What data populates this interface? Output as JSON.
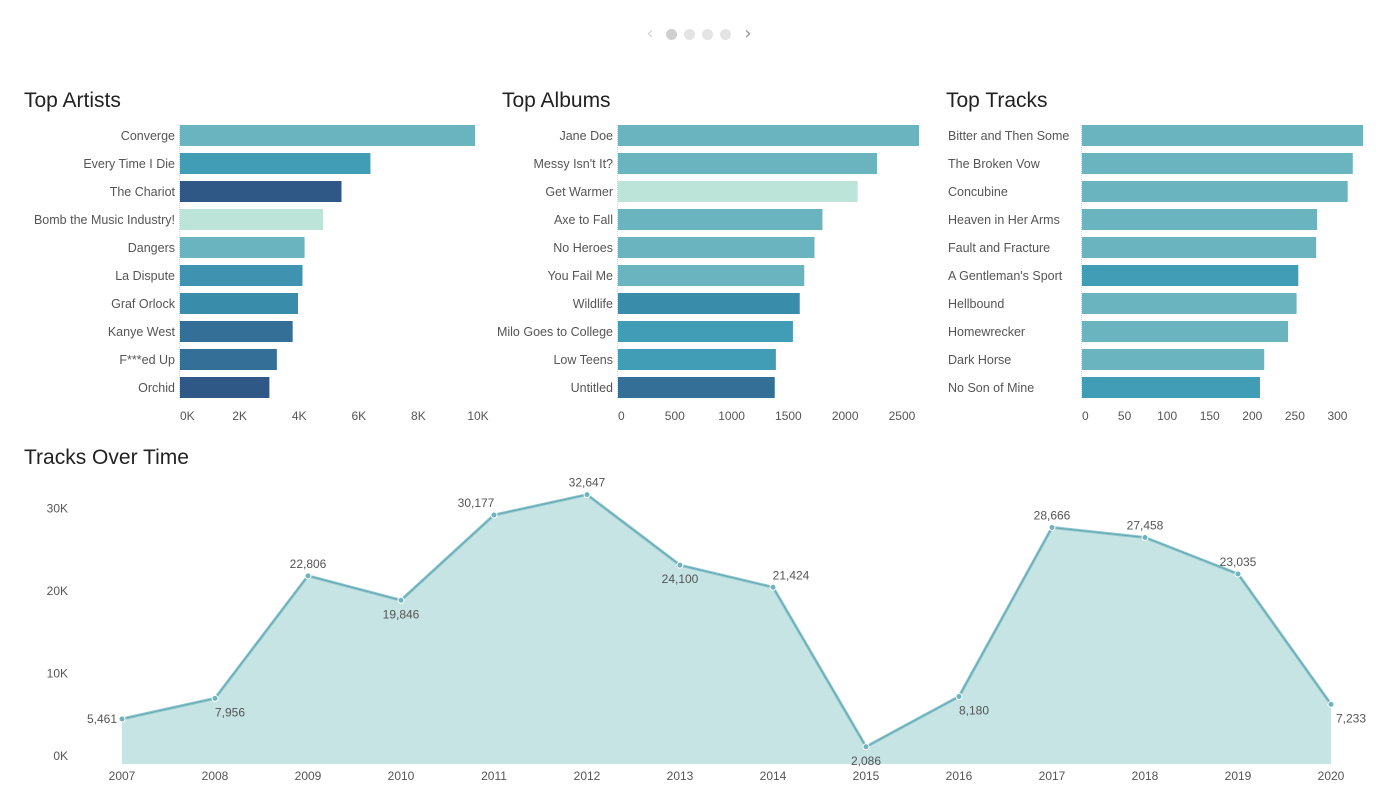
{
  "pager": {
    "prev_icon": "‹",
    "next_icon": "›",
    "pages": 4,
    "active": 0
  },
  "charts": {
    "artists": {
      "title": "Top Artists",
      "chart_data": {
        "type": "bar",
        "orientation": "horizontal",
        "categories": [
          "Converge",
          "Every Time I Die",
          "The Chariot",
          "Bomb the Music Industry!",
          "Dangers",
          "La Dispute",
          "Graf Orlock",
          "Kanye West",
          "F***ed Up",
          "Orchid"
        ],
        "values": [
          9900,
          6390,
          5420,
          4800,
          4180,
          4110,
          3960,
          3780,
          3250,
          3000
        ],
        "xlim": [
          0,
          10000
        ],
        "xticks": [
          0,
          2000,
          4000,
          6000,
          8000,
          10000
        ],
        "xtick_labels": [
          "0K",
          "2K",
          "4K",
          "6K",
          "8K",
          "10K"
        ],
        "colors": [
          "#6ab4c0",
          "#419db5",
          "#2f5886",
          "#bde4d8",
          "#6ab4c0",
          "#3f93b0",
          "#3a8cab",
          "#336f96",
          "#336f96",
          "#2f5886"
        ]
      }
    },
    "albums": {
      "title": "Top Albums",
      "chart_data": {
        "type": "bar",
        "orientation": "horizontal",
        "categories": [
          "Jane Doe",
          "Messy Isn't It?",
          "Get Warmer",
          "Axe to Fall",
          "No Heroes",
          "You Fail Me",
          "Wildlife",
          "Milo Goes to College",
          "Low Teens",
          "Untitled"
        ],
        "values": [
          2650,
          2280,
          2110,
          1800,
          1730,
          1640,
          1600,
          1540,
          1390,
          1380
        ],
        "xlim": [
          0,
          2650
        ],
        "xticks": [
          0,
          500,
          1000,
          1500,
          2000,
          2500
        ],
        "xtick_labels": [
          "0",
          "500",
          "1000",
          "1500",
          "2000",
          "2500"
        ],
        "colors": [
          "#6ab4c0",
          "#6ab4c0",
          "#bde4d8",
          "#6ab4c0",
          "#6ab4c0",
          "#6ab4c0",
          "#3a8cab",
          "#419db5",
          "#419db5",
          "#336f96"
        ]
      }
    },
    "tracks": {
      "title": "Top Tracks",
      "chart_data": {
        "type": "bar",
        "orientation": "horizontal",
        "categories": [
          "Bitter and Then Some",
          "The Broken Vow",
          "Concubine",
          "Heaven in Her Arms",
          "Fault and Fracture",
          "A Gentleman's Sport",
          "Hellbound",
          "Homewrecker",
          "Dark Horse",
          "No Son of Mine"
        ],
        "values": [
          330,
          318,
          312,
          276,
          275,
          254,
          252,
          242,
          214,
          209
        ],
        "xlim": [
          0,
          330
        ],
        "xticks": [
          0,
          50,
          100,
          150,
          200,
          250,
          300
        ],
        "xtick_labels": [
          "0",
          "50",
          "100",
          "150",
          "200",
          "250",
          "300"
        ],
        "colors": [
          "#6ab4c0",
          "#6ab4c0",
          "#6ab4c0",
          "#6ab4c0",
          "#6ab4c0",
          "#419db5",
          "#6ab4c0",
          "#6ab4c0",
          "#6ab4c0",
          "#419db5"
        ]
      }
    },
    "time": {
      "title": "Tracks Over Time",
      "chart_data": {
        "type": "area",
        "x": [
          "2007",
          "2008",
          "2009",
          "2010",
          "2011",
          "2012",
          "2013",
          "2014",
          "2015",
          "2016",
          "2017",
          "2018",
          "2019",
          "2020"
        ],
        "values": [
          5461,
          7956,
          22806,
          19846,
          30177,
          32647,
          24100,
          21424,
          2086,
          8180,
          28666,
          27458,
          23035,
          7233
        ],
        "value_labels": [
          "5,461",
          "7,956",
          "22,806",
          "19,846",
          "30,177",
          "32,647",
          "24,100",
          "21,424",
          "2,086",
          "8,180",
          "28,666",
          "27,458",
          "23,035",
          "7,233"
        ],
        "label_positions": [
          "left",
          "below",
          "above",
          "below",
          "above-left",
          "above",
          "below",
          "above-right",
          "below",
          "below",
          "above",
          "above",
          "above",
          "below"
        ],
        "ylim": [
          0,
          33000
        ],
        "yticks": [
          0,
          10000,
          20000,
          30000
        ],
        "ytick_labels": [
          "0K",
          "10K",
          "20K",
          "30K"
        ],
        "colors": {
          "fill": "#c5e4e3",
          "line": "#8cc7cc",
          "line_dark": "#4e8fa6",
          "point": "#6fb3bf"
        }
      }
    }
  }
}
